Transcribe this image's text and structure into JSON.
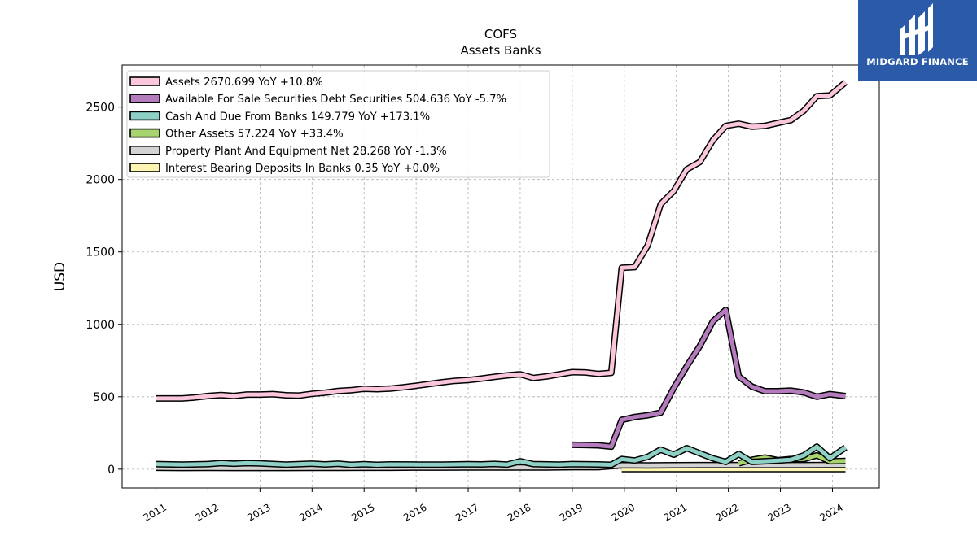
{
  "chart_data": {
    "type": "line",
    "title": "COFS",
    "subtitle": "Assets Banks",
    "ylabel": "USD",
    "xlabel": "",
    "ylim": [
      -130,
      2790
    ],
    "xlim": [
      2010.35,
      2024.9
    ],
    "yticks": [
      0,
      500,
      1000,
      1500,
      2000,
      2500
    ],
    "xticks": [
      "2011",
      "2012",
      "2013",
      "2014",
      "2015",
      "2016",
      "2017",
      "2018",
      "2019",
      "2020",
      "2021",
      "2022",
      "2023",
      "2024"
    ],
    "grid": true,
    "legend_position": "top-left",
    "series": [
      {
        "name": "Assets",
        "legend": "Assets  2670.699 YoY +10.8%",
        "color": "#f9c6dc",
        "x": [
          2011.0,
          2011.5,
          2011.75,
          2012.0,
          2012.25,
          2012.5,
          2012.75,
          2013.0,
          2013.25,
          2013.5,
          2013.75,
          2014.0,
          2014.25,
          2014.5,
          2014.75,
          2015.0,
          2015.25,
          2015.5,
          2015.75,
          2016.0,
          2016.25,
          2016.5,
          2016.75,
          2017.0,
          2017.25,
          2017.5,
          2017.75,
          2018.0,
          2018.25,
          2018.5,
          2018.75,
          2019.0,
          2019.25,
          2019.5,
          2019.75,
          2019.95,
          2020.2,
          2020.45,
          2020.7,
          2020.95,
          2021.2,
          2021.45,
          2021.7,
          2021.95,
          2022.2,
          2022.45,
          2022.7,
          2022.95,
          2023.2,
          2023.45,
          2023.7,
          2023.95,
          2024.25
        ],
        "values": [
          488,
          488,
          495,
          505,
          512,
          505,
          515,
          515,
          518,
          510,
          508,
          520,
          528,
          540,
          545,
          555,
          552,
          556,
          565,
          576,
          588,
          600,
          610,
          615,
          625,
          637,
          648,
          655,
          630,
          640,
          655,
          670,
          668,
          658,
          665,
          1390,
          1395,
          1545,
          1830,
          1920,
          2070,
          2120,
          2270,
          2370,
          2385,
          2365,
          2370,
          2390,
          2410,
          2475,
          2575,
          2580,
          2670.699
        ]
      },
      {
        "name": "Available For Sale Securities Debt Securities",
        "legend": "Available For Sale Securities Debt Securities  504.636 YoY -5.7%",
        "color": "#b57cbd",
        "x": [
          2019.0,
          2019.25,
          2019.5,
          2019.75,
          2019.95,
          2020.2,
          2020.45,
          2020.7,
          2020.95,
          2021.2,
          2021.45,
          2021.7,
          2021.95,
          2022.2,
          2022.45,
          2022.7,
          2022.95,
          2023.2,
          2023.45,
          2023.7,
          2023.95,
          2024.25
        ],
        "values": [
          168,
          167,
          165,
          155,
          340,
          360,
          372,
          390,
          560,
          710,
          850,
          1020,
          1100,
          640,
          570,
          538,
          538,
          542,
          530,
          500,
          518,
          504.636
        ]
      },
      {
        "name": "Cash And Due From Banks",
        "legend": "Cash And Due From Banks  149.779 YoY +173.1%",
        "color": "#8ed0c6",
        "x": [
          2011.0,
          2011.5,
          2012.0,
          2012.25,
          2012.5,
          2012.75,
          2013.0,
          2013.5,
          2014.0,
          2014.25,
          2014.5,
          2014.75,
          2015.0,
          2015.25,
          2015.5,
          2016.0,
          2016.5,
          2017.0,
          2017.25,
          2017.5,
          2017.75,
          2018.0,
          2018.25,
          2018.75,
          2019.0,
          2019.5,
          2019.75,
          2019.95,
          2020.2,
          2020.45,
          2020.7,
          2020.95,
          2021.2,
          2021.45,
          2021.7,
          2021.95,
          2022.2,
          2022.45,
          2022.7,
          2022.95,
          2023.2,
          2023.45,
          2023.7,
          2023.95,
          2024.25
        ],
        "values": [
          35,
          32,
          35,
          42,
          38,
          42,
          40,
          32,
          38,
          33,
          38,
          30,
          34,
          30,
          33,
          32,
          32,
          34,
          33,
          36,
          32,
          55,
          35,
          32,
          35,
          33,
          30,
          70,
          60,
          85,
          135,
          100,
          145,
          110,
          75,
          50,
          105,
          50,
          55,
          60,
          65,
          95,
          155,
          75,
          149.779
        ]
      },
      {
        "name": "Other Assets",
        "legend": "Other Assets  57.224 YoY +33.4%",
        "color": "#a8d46f",
        "x": [
          2022.2,
          2022.45,
          2022.7,
          2022.95,
          2023.2,
          2023.45,
          2023.7,
          2023.95,
          2024.25
        ],
        "values": [
          40,
          65,
          80,
          62,
          70,
          70,
          95,
          55,
          57.224
        ]
      },
      {
        "name": "Property Plant And Equipment Net",
        "legend": "Property Plant And Equipment Net  28.268 YoY -1.3%",
        "color": "#d3d3d3",
        "x": [
          2011.0,
          2011.5,
          2012.0,
          2012.5,
          2013.0,
          2013.5,
          2014.0,
          2014.5,
          2015.0,
          2015.5,
          2016.0,
          2016.5,
          2017.0,
          2017.5,
          2018.0,
          2018.5,
          2019.0,
          2019.5,
          2019.95,
          2020.45,
          2020.95,
          2021.45,
          2021.95,
          2022.45,
          2022.95,
          2023.45,
          2023.95,
          2024.25
        ],
        "values": [
          10,
          8,
          9,
          8,
          8,
          8,
          9,
          9,
          10,
          10,
          11,
          11,
          12,
          12,
          12,
          12,
          14,
          14,
          27,
          26,
          27,
          28,
          28,
          28,
          28,
          28,
          28.6,
          28.268
        ]
      },
      {
        "name": "Interest Bearing Deposits In Banks",
        "legend": "Interest Bearing Deposits In Banks  0.35 YoY +0.0%",
        "color": "#fdf6b3",
        "x": [
          2019.95,
          2024.25
        ],
        "values": [
          0.35,
          0.35
        ]
      }
    ]
  },
  "logo": {
    "text": "MIDGARD FINANCE"
  }
}
